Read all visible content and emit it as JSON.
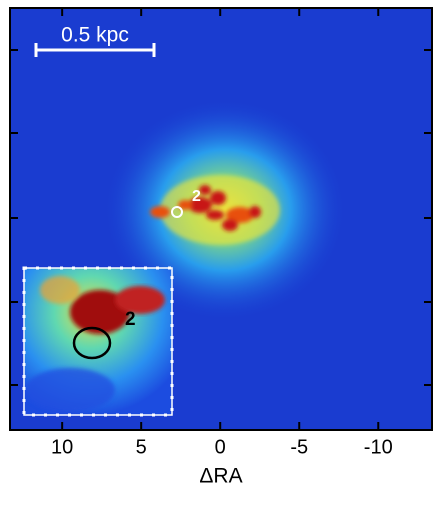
{
  "chart_data": {
    "type": "image",
    "xlabel": "ΔRA",
    "xlim": [
      13.3,
      -13.4
    ],
    "xticks": [
      10,
      5,
      0,
      -5,
      -10
    ],
    "scale_bar": "0.5 kpc",
    "source_label": "2",
    "inset_label": "2"
  }
}
